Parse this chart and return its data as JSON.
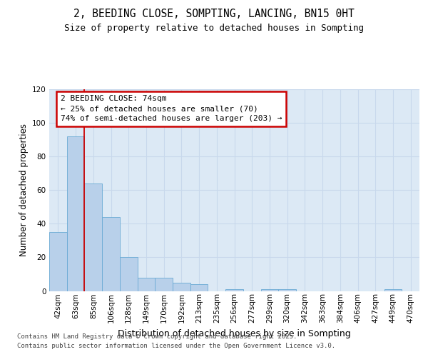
{
  "title_line1": "2, BEEDING CLOSE, SOMPTING, LANCING, BN15 0HT",
  "title_line2": "Size of property relative to detached houses in Sompting",
  "xlabel": "Distribution of detached houses by size in Sompting",
  "ylabel": "Number of detached properties",
  "bar_categories": [
    "42sqm",
    "63sqm",
    "85sqm",
    "106sqm",
    "128sqm",
    "149sqm",
    "170sqm",
    "192sqm",
    "213sqm",
    "235sqm",
    "256sqm",
    "277sqm",
    "299sqm",
    "320sqm",
    "342sqm",
    "363sqm",
    "384sqm",
    "406sqm",
    "427sqm",
    "449sqm",
    "470sqm"
  ],
  "bar_values": [
    35,
    92,
    64,
    44,
    20,
    8,
    8,
    5,
    4,
    0,
    1,
    0,
    1,
    1,
    0,
    0,
    0,
    0,
    0,
    1,
    0
  ],
  "bar_color": "#b8d0ea",
  "bar_edge_color": "#6aaad4",
  "vline_color": "#cc0000",
  "vline_x": 1.5,
  "ylim": [
    0,
    120
  ],
  "yticks": [
    0,
    20,
    40,
    60,
    80,
    100,
    120
  ],
  "annotation_text": "2 BEEDING CLOSE: 74sqm\n← 25% of detached houses are smaller (70)\n74% of semi-detached houses are larger (203) →",
  "annotation_box_edgecolor": "#cc0000",
  "footer_line1": "Contains HM Land Registry data © Crown copyright and database right 2025.",
  "footer_line2": "Contains public sector information licensed under the Open Government Licence v3.0.",
  "bg_color": "#dce9f5",
  "fig_bg_color": "#ffffff",
  "grid_color": "#c8d8ec",
  "title_fontsize": 10.5,
  "subtitle_fontsize": 9.0,
  "ylabel_fontsize": 8.5,
  "xlabel_fontsize": 9.0,
  "tick_fontsize": 7.5,
  "ann_fontsize": 8.0,
  "footer_fontsize": 6.5
}
